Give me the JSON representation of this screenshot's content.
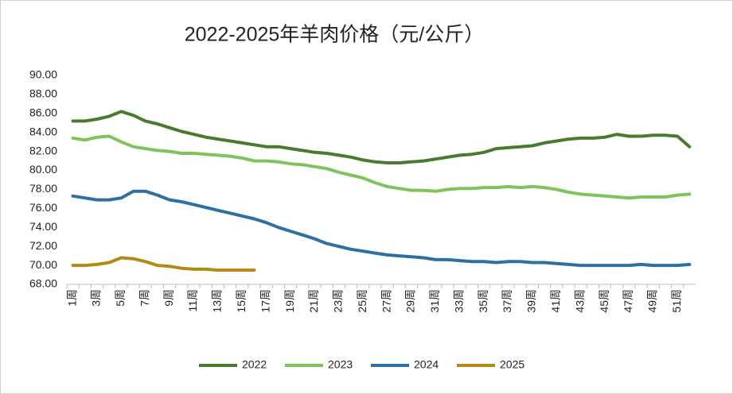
{
  "chart_data": {
    "type": "line",
    "title": "2022-2025年羊肉价格（元/公斤）",
    "categories": [
      "1周",
      null,
      "3周",
      null,
      "5周",
      null,
      "7周",
      null,
      "9周",
      null,
      "11周",
      null,
      "13周",
      null,
      "15周",
      null,
      "17周",
      null,
      "19周",
      null,
      "21周",
      null,
      "23周",
      null,
      "25周",
      null,
      "27周",
      null,
      "29周",
      null,
      "31周",
      null,
      "33周",
      null,
      "35周",
      null,
      "37周",
      null,
      "39周",
      null,
      "41周",
      null,
      "43周",
      null,
      "45周",
      null,
      "47周",
      null,
      "49周",
      null,
      "51周",
      null
    ],
    "series": [
      {
        "name": "2022",
        "color": "#4a7a2c",
        "values": [
          85.2,
          85.2,
          85.4,
          85.7,
          86.2,
          85.8,
          85.2,
          84.9,
          84.5,
          84.1,
          83.8,
          83.5,
          83.3,
          83.1,
          82.9,
          82.7,
          82.5,
          82.5,
          82.3,
          82.1,
          81.9,
          81.8,
          81.6,
          81.4,
          81.1,
          80.9,
          80.8,
          80.8,
          80.9,
          81.0,
          81.2,
          81.4,
          81.6,
          81.7,
          81.9,
          82.3,
          82.4,
          82.5,
          82.6,
          82.9,
          83.1,
          83.3,
          83.4,
          83.4,
          83.5,
          83.8,
          83.6,
          83.6,
          83.7,
          83.7,
          83.6,
          82.5
        ]
      },
      {
        "name": "2023",
        "color": "#80c35a",
        "values": [
          83.4,
          83.2,
          83.5,
          83.6,
          83.0,
          82.5,
          82.3,
          82.1,
          82.0,
          81.8,
          81.8,
          81.7,
          81.6,
          81.5,
          81.3,
          81.0,
          81.0,
          80.9,
          80.7,
          80.6,
          80.4,
          80.2,
          79.8,
          79.5,
          79.2,
          78.7,
          78.3,
          78.1,
          77.9,
          77.9,
          77.8,
          78.0,
          78.1,
          78.1,
          78.2,
          78.2,
          78.3,
          78.2,
          78.3,
          78.2,
          78.0,
          77.7,
          77.5,
          77.4,
          77.3,
          77.2,
          77.1,
          77.2,
          77.2,
          77.2,
          77.4,
          77.5
        ]
      },
      {
        "name": "2024",
        "color": "#2e6fa4",
        "values": [
          77.3,
          77.1,
          76.9,
          76.9,
          77.1,
          77.8,
          77.8,
          77.4,
          76.9,
          76.7,
          76.4,
          76.1,
          75.8,
          75.5,
          75.2,
          74.9,
          74.5,
          74.0,
          73.6,
          73.2,
          72.8,
          72.3,
          72.0,
          71.7,
          71.5,
          71.3,
          71.1,
          71.0,
          70.9,
          70.8,
          70.6,
          70.6,
          70.5,
          70.4,
          70.4,
          70.3,
          70.4,
          70.4,
          70.3,
          70.3,
          70.2,
          70.1,
          70.0,
          70.0,
          70.0,
          70.0,
          70.0,
          70.1,
          70.0,
          70.0,
          70.0,
          70.1
        ]
      },
      {
        "name": "2025",
        "color": "#b38a14",
        "values": [
          70.0,
          70.0,
          70.1,
          70.3,
          70.8,
          70.7,
          70.4,
          70.0,
          69.9,
          69.7,
          69.6,
          69.6,
          69.5,
          69.5,
          69.5,
          69.5,
          null,
          null,
          null,
          null,
          null,
          null,
          null,
          null,
          null,
          null,
          null,
          null,
          null,
          null,
          null,
          null,
          null,
          null,
          null,
          null,
          null,
          null,
          null,
          null,
          null,
          null,
          null,
          null,
          null,
          null,
          null,
          null,
          null,
          null,
          null,
          null
        ]
      }
    ],
    "ylim": [
      68,
      90
    ],
    "yticks": [
      {
        "value": 68,
        "label": "68.00"
      },
      {
        "value": 70,
        "label": "70.00"
      },
      {
        "value": 72,
        "label": "72.00"
      },
      {
        "value": 74,
        "label": "74.00"
      },
      {
        "value": 76,
        "label": "76.00"
      },
      {
        "value": 78,
        "label": "78.00"
      },
      {
        "value": 80,
        "label": "80.00"
      },
      {
        "value": 82,
        "label": "82.00"
      },
      {
        "value": 84,
        "label": "84.00"
      },
      {
        "value": 86,
        "label": "86.00"
      },
      {
        "value": 88,
        "label": "88.00"
      },
      {
        "value": 90,
        "label": "90.00"
      }
    ],
    "legend": "bottom"
  }
}
